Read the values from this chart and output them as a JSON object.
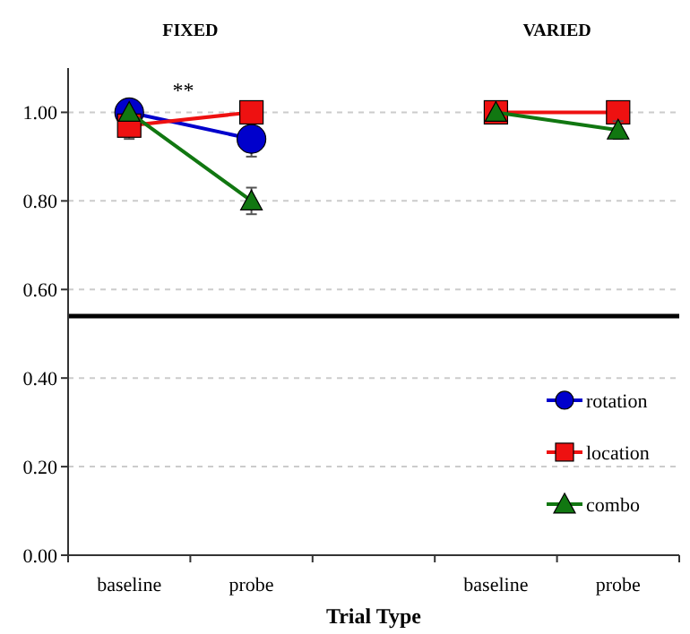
{
  "chart_data": {
    "type": "line",
    "xlabel": "Trial Type",
    "categories": [
      "baseline",
      "probe",
      null,
      "baseline",
      "probe"
    ],
    "series": [
      {
        "name": "rotation",
        "color": "#0000cc",
        "marker": "circle",
        "values": [
          1.0,
          0.94,
          null,
          null,
          null
        ],
        "errors": [
          null,
          0.04,
          null,
          null,
          null
        ]
      },
      {
        "name": "location",
        "color": "#ee1111",
        "marker": "square",
        "values": [
          0.97,
          1.0,
          null,
          1.0,
          1.0
        ],
        "errors": [
          0.03,
          null,
          null,
          null,
          null
        ]
      },
      {
        "name": "combo",
        "color": "#117711",
        "marker": "triangle",
        "values": [
          1.0,
          0.8,
          null,
          1.0,
          0.96
        ],
        "errors": [
          null,
          0.03,
          null,
          null,
          0.02
        ]
      }
    ],
    "ylim": [
      0,
      1.1
    ],
    "yticks": [
      {
        "value": 0,
        "label": "0.00"
      },
      {
        "value": 0.2,
        "label": "0.20"
      },
      {
        "value": 0.4,
        "label": "0.40"
      },
      {
        "value": 0.6,
        "label": "0.60"
      },
      {
        "value": 0.8,
        "label": "0.80"
      },
      {
        "value": 1,
        "label": "1.00"
      }
    ],
    "grid": "y",
    "ref_lines": [
      {
        "axis": "y",
        "value": 0.54,
        "color": "#000000"
      }
    ],
    "annotations": [
      "FIXED",
      "VARIED",
      "**"
    ],
    "legend": "right"
  }
}
